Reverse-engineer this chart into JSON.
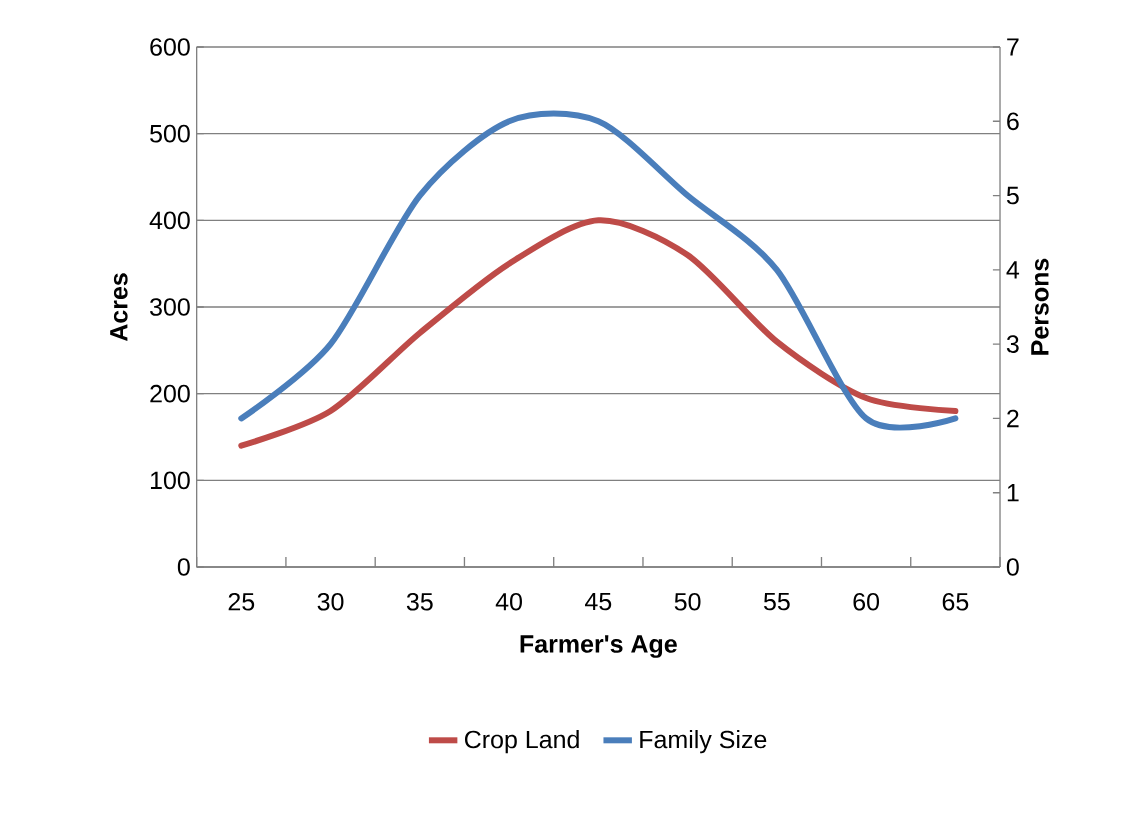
{
  "chart_data": {
    "type": "line",
    "xlabel": "Farmer's Age",
    "ylabel": "Acres",
    "y2label": "Persons",
    "categories": [
      "25",
      "30",
      "35",
      "40",
      "45",
      "50",
      "55",
      "60",
      "65"
    ],
    "series": [
      {
        "name": "Crop Land",
        "color": "#be4b48",
        "values": [
          140,
          180,
          270,
          350,
          400,
          360,
          260,
          195,
          180
        ]
      },
      {
        "name": "Family Size",
        "color": "#4a7ebb",
        "axis": "y2",
        "values": [
          2,
          3,
          5,
          6,
          6,
          5,
          4,
          2,
          2
        ]
      }
    ],
    "ylim": [
      0,
      600
    ],
    "yticks": [
      0,
      100,
      200,
      300,
      400,
      500,
      600
    ],
    "y2lim": [
      0,
      7
    ],
    "y2ticks": [
      0,
      1,
      2,
      3,
      4,
      5,
      6,
      7
    ],
    "grid": "y",
    "legend": "bottom",
    "marker": "none",
    "line_style": "solid"
  }
}
